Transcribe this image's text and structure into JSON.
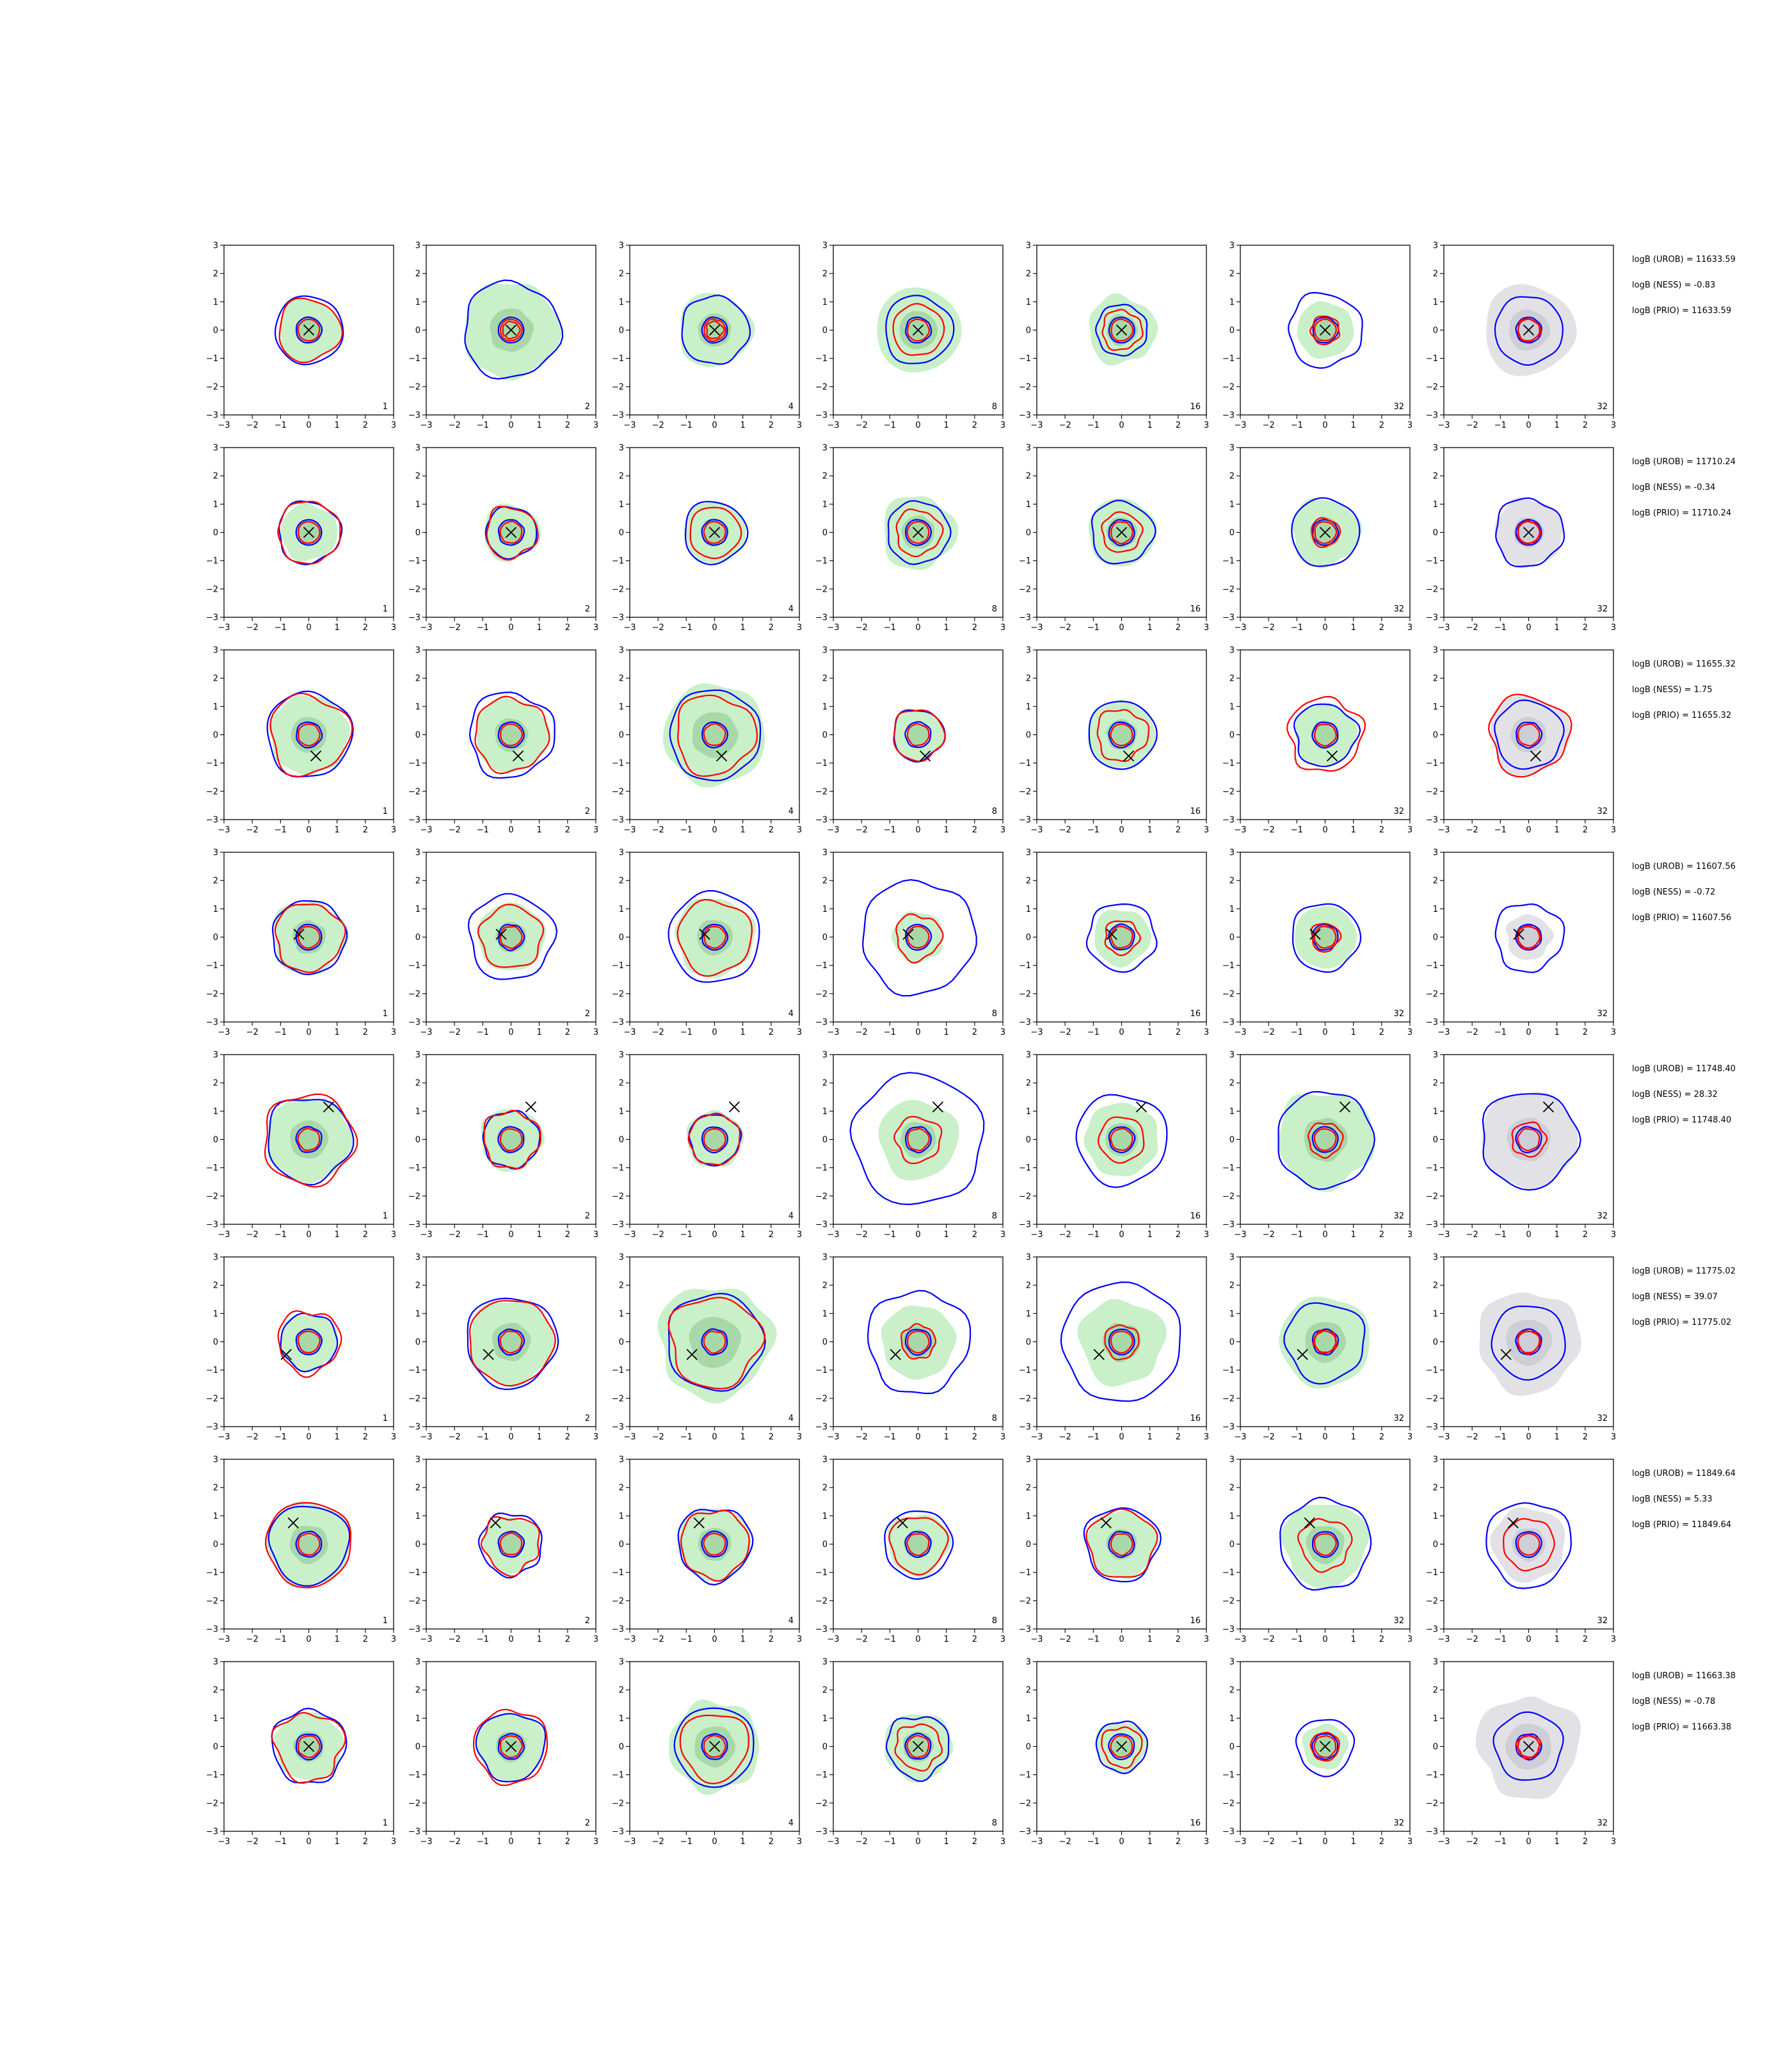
{
  "figure": {
    "rows": 8,
    "cols": 7,
    "axis_ticks": [
      "−3",
      "−2",
      "−1",
      "0",
      "1",
      "2",
      "3"
    ],
    "colors": {
      "region_fill": "#c9f0c9",
      "region_core": "#a8d8a8",
      "prior_fill": "#e2e2e6",
      "prior_core": "#cdced6",
      "blue_contour": "#0000ff",
      "red_contour": "#ff0000",
      "marker": "#000000"
    }
  },
  "chart_data": {
    "type": "scatter",
    "title": "",
    "xlabel": "",
    "ylabel": "",
    "xlim": [
      -3,
      3
    ],
    "ylim": [
      -3,
      3
    ],
    "column_labels": [
      "1",
      "2",
      "4",
      "8",
      "16",
      "32",
      "32"
    ],
    "column_fill": [
      "green",
      "green",
      "green",
      "green",
      "green",
      "green",
      "gray"
    ],
    "rows": [
      {
        "x_marker": [
          0.0,
          0.0
        ],
        "green_radius": [
          1.1,
          1.7,
          1.3,
          1.5,
          1.2,
          1.0,
          1.6
        ],
        "blue_radius": [
          1.2,
          1.7,
          1.2,
          1.2,
          0.9,
          1.3,
          1.2
        ],
        "red_radius": [
          1.1,
          0.3,
          0.3,
          0.9,
          0.7,
          0.5,
          0.4
        ],
        "labels": {
          "urob": "logB (UROB) = 11633.59",
          "ness": "logB (NESS) = -0.83",
          "prio": "logB (PRIO) = 11633.59"
        }
      },
      {
        "x_marker": [
          0.0,
          0.0
        ],
        "green_radius": [
          1.0,
          1.0,
          1.1,
          1.3,
          1.2,
          1.2,
          1.2
        ],
        "blue_radius": [
          1.1,
          0.9,
          1.1,
          1.1,
          1.1,
          1.2,
          1.2
        ],
        "red_radius": [
          1.1,
          0.9,
          0.9,
          0.8,
          0.7,
          0.5,
          0.4
        ],
        "labels": {
          "urob": "logB (UROB) = 11710.24",
          "ness": "logB (NESS) = -0.34",
          "prio": "logB (PRIO) = 11710.24"
        }
      },
      {
        "x_marker": [
          0.25,
          -0.75
        ],
        "green_radius": [
          1.4,
          1.3,
          1.8,
          0.9,
          1.2,
          1.1,
          1.4
        ],
        "blue_radius": [
          1.5,
          1.5,
          1.6,
          0.9,
          1.2,
          1.1,
          1.2
        ],
        "red_radius": [
          1.4,
          1.3,
          1.4,
          0.9,
          0.9,
          1.3,
          1.4
        ],
        "labels": {
          "urob": "logB (UROB) = 11655.32",
          "ness": "logB (NESS) = 1.75",
          "prio": "logB (PRIO) = 11655.32"
        }
      },
      {
        "x_marker": [
          -0.35,
          0.1
        ],
        "green_radius": [
          1.3,
          1.2,
          1.4,
          0.9,
          1.0,
          1.1,
          0.8
        ],
        "blue_radius": [
          1.3,
          1.5,
          1.6,
          2.0,
          1.2,
          1.2,
          1.2
        ],
        "red_radius": [
          1.2,
          1.1,
          1.3,
          0.8,
          0.6,
          0.5,
          0.4
        ],
        "labels": {
          "urob": "logB (UROB) = 11607.56",
          "ness": "logB (NESS) = -0.72",
          "prio": "logB (PRIO) = 11607.56"
        }
      },
      {
        "x_marker": [
          0.7,
          1.15
        ],
        "green_radius": [
          1.5,
          1.1,
          1.0,
          1.4,
          1.3,
          1.7,
          1.7
        ],
        "blue_radius": [
          1.5,
          1.0,
          0.9,
          2.3,
          1.6,
          1.7,
          1.7
        ],
        "red_radius": [
          1.6,
          1.0,
          0.9,
          0.8,
          0.8,
          0.6,
          0.6
        ],
        "labels": {
          "urob": "logB (UROB) = 11748.40",
          "ness": "logB (NESS) = 28.32",
          "prio": "logB (PRIO) = 11748.40"
        }
      },
      {
        "x_marker": [
          -0.8,
          -0.45
        ],
        "green_radius": [
          1.0,
          1.5,
          2.0,
          1.3,
          1.5,
          1.6,
          1.8
        ],
        "blue_radius": [
          1.0,
          1.6,
          1.7,
          1.8,
          2.1,
          1.4,
          1.3
        ],
        "red_radius": [
          1.1,
          1.5,
          1.6,
          0.6,
          0.6,
          0.4,
          0.4
        ],
        "labels": {
          "urob": "logB (UROB) = 11775.02",
          "ness": "logB (NESS) = 39.07",
          "prio": "logB (PRIO) = 11775.02"
        }
      },
      {
        "x_marker": [
          -0.55,
          0.75
        ],
        "green_radius": [
          1.5,
          1.0,
          1.3,
          1.1,
          1.2,
          1.5,
          1.3
        ],
        "blue_radius": [
          1.4,
          1.1,
          1.3,
          1.2,
          1.3,
          1.6,
          1.5
        ],
        "red_radius": [
          1.5,
          1.0,
          1.2,
          1.0,
          1.2,
          0.9,
          0.9
        ],
        "labels": {
          "urob": "logB (UROB) = 11849.64",
          "ness": "logB (NESS) = 5.33",
          "prio": "logB (PRIO) = 11849.64"
        }
      },
      {
        "x_marker": [
          0.0,
          0.0
        ],
        "green_radius": [
          1.2,
          1.2,
          1.6,
          1.2,
          0.9,
          0.8,
          1.8
        ],
        "blue_radius": [
          1.3,
          1.2,
          1.4,
          1.1,
          0.9,
          1.0,
          1.2
        ],
        "red_radius": [
          1.2,
          1.3,
          1.2,
          0.8,
          0.7,
          0.5,
          0.4
        ],
        "labels": {
          "urob": "logB (UROB) = 11663.38",
          "ness": "logB (NESS) = -0.78",
          "prio": "logB (PRIO) = 11663.38"
        }
      }
    ]
  }
}
